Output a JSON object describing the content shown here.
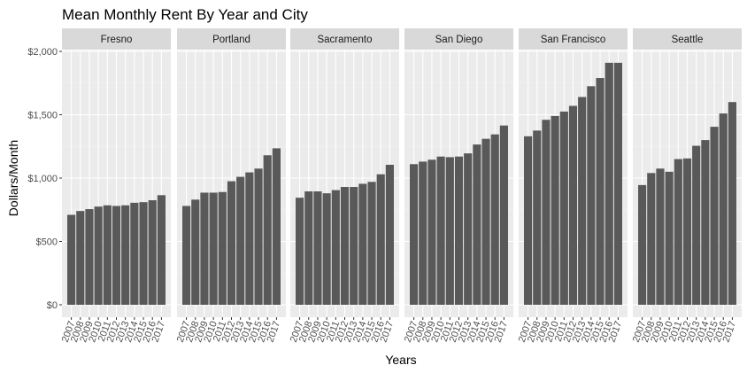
{
  "chart_data": {
    "type": "bar",
    "title": "Mean Monthly Rent By Year and City",
    "xlabel": "Years",
    "ylabel": "Dollars/Month",
    "ylim": [
      0,
      2000
    ],
    "y_ticks": [
      0,
      500,
      1000,
      1500,
      2000
    ],
    "y_tick_labels": [
      "$0",
      "$500",
      "$1,000",
      "$1,500",
      "$2,000"
    ],
    "categories": [
      "2007",
      "2008",
      "2009",
      "2010",
      "2011",
      "2012",
      "2013",
      "2014",
      "2015",
      "2016",
      "2017"
    ],
    "grid": true,
    "facet_by": "city",
    "bar_color": "#595959",
    "panel_bg": "#ebebeb",
    "strip_bg": "#d9d9d9",
    "series": [
      {
        "name": "Fresno",
        "values": [
          710,
          740,
          755,
          775,
          785,
          780,
          785,
          805,
          810,
          825,
          865
        ]
      },
      {
        "name": "Portland",
        "values": [
          780,
          830,
          885,
          885,
          890,
          975,
          1010,
          1045,
          1075,
          1180,
          1235
        ]
      },
      {
        "name": "Sacramento",
        "values": [
          845,
          895,
          895,
          880,
          905,
          930,
          930,
          955,
          970,
          1030,
          1105
        ]
      },
      {
        "name": "San Diego",
        "values": [
          1110,
          1130,
          1145,
          1170,
          1165,
          1170,
          1195,
          1265,
          1310,
          1345,
          1415
        ]
      },
      {
        "name": "San Francisco",
        "values": [
          1330,
          1375,
          1460,
          1490,
          1525,
          1570,
          1640,
          1725,
          1790,
          1910,
          1910
        ]
      },
      {
        "name": "Seattle",
        "values": [
          945,
          1040,
          1075,
          1050,
          1150,
          1155,
          1255,
          1300,
          1405,
          1510,
          1600
        ]
      }
    ]
  }
}
